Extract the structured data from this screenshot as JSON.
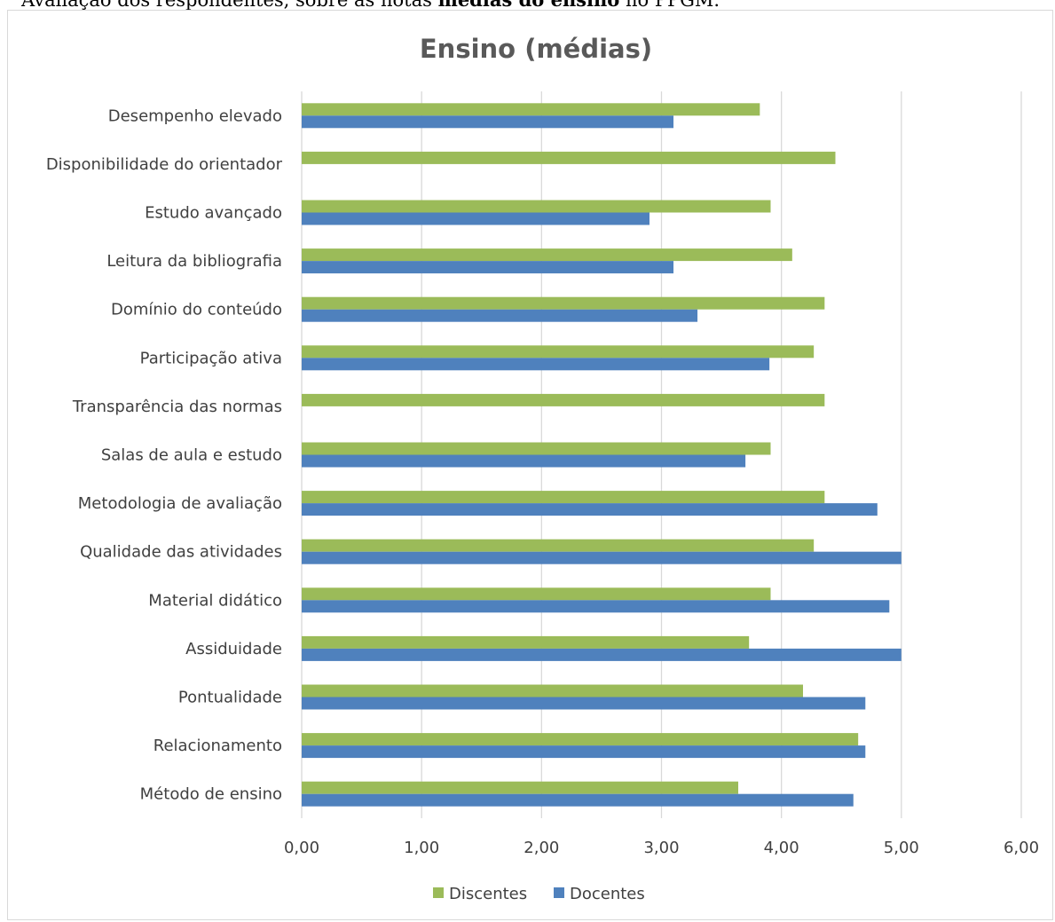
{
  "caption": {
    "prefix": "Avaliação dos respondentes, sobre as notas ",
    "bold": "médias do ensino",
    "suffix": " no PPGM."
  },
  "chart_data": {
    "type": "bar",
    "orientation": "horizontal",
    "title": "Ensino (médias)",
    "categories": [
      "Desempenho elevado",
      "Disponibilidade do orientador",
      "Estudo avançado",
      "Leitura da bibliografia",
      "Domínio do conteúdo",
      "Participação ativa",
      "Transparência das normas",
      "Salas de aula e estudo",
      "Metodologia de avaliação",
      "Qualidade das atividades",
      "Material didático",
      "Assiduidade",
      "Pontualidade",
      "Relacionamento",
      "Método de ensino"
    ],
    "series": [
      {
        "name": "Discentes",
        "color": "#9bbb59",
        "values": [
          3.82,
          4.45,
          3.91,
          4.09,
          4.36,
          4.27,
          4.36,
          3.91,
          4.36,
          4.27,
          3.91,
          3.73,
          4.18,
          4.64,
          3.64
        ]
      },
      {
        "name": "Docentes",
        "color": "#4f81bd",
        "values": [
          3.1,
          null,
          2.9,
          3.1,
          3.3,
          3.9,
          null,
          3.7,
          4.8,
          5.0,
          4.9,
          5.0,
          4.7,
          4.7,
          4.6
        ]
      }
    ],
    "xlim": [
      0,
      6
    ],
    "xticks": [
      "0,00",
      "1,00",
      "2,00",
      "3,00",
      "4,00",
      "5,00",
      "6,00"
    ],
    "grid": true,
    "legend_position": "bottom"
  }
}
